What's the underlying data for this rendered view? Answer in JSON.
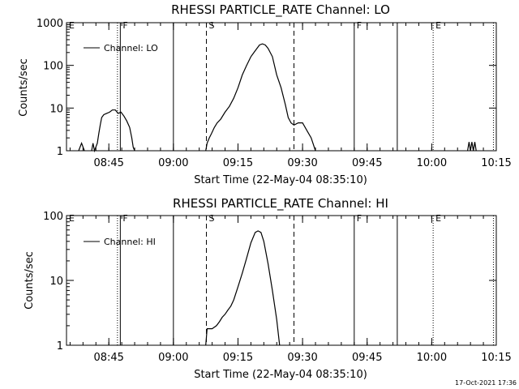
{
  "chart_data": [
    {
      "type": "line",
      "title": "RHESSI PARTICLE_RATE Channel: LO",
      "xlabel": "Start Time (22-May-04 08:35:10)",
      "ylabel": "Counts/sec",
      "y_scale": "log",
      "ylim": [
        1,
        1000
      ],
      "yticks": [
        {
          "value": 1,
          "label": "1"
        },
        {
          "value": 10,
          "label": "10"
        },
        {
          "value": 100,
          "label": "100"
        },
        {
          "value": 1000,
          "label": "1000"
        }
      ],
      "xlim": [
        "08:35:10",
        "10:15:00"
      ],
      "xticks": [
        {
          "time": "08:45",
          "label": "08:45"
        },
        {
          "time": "09:00",
          "label": "09:00"
        },
        {
          "time": "09:15",
          "label": "09:15"
        },
        {
          "time": "09:30",
          "label": "09:30"
        },
        {
          "time": "09:45",
          "label": "09:45"
        },
        {
          "time": "10:00",
          "label": "10:00"
        },
        {
          "time": "10:15",
          "label": "10:15"
        }
      ],
      "legend": {
        "position": "top-left",
        "entries": [
          "Channel: LO"
        ]
      },
      "grid": false,
      "markers": [
        {
          "time": "08:35:10",
          "style": "solid",
          "label": "E"
        },
        {
          "time": "08:47:00",
          "style": "dotted",
          "label": ""
        },
        {
          "time": "08:47:40",
          "style": "solid",
          "label": "F"
        },
        {
          "time": "09:00:00",
          "style": "solid",
          "label": ""
        },
        {
          "time": "09:07:40",
          "style": "dashed",
          "label": "S"
        },
        {
          "time": "09:28:00",
          "style": "dashed",
          "label": ""
        },
        {
          "time": "09:42:00",
          "style": "solid",
          "label": "F"
        },
        {
          "time": "09:52:00",
          "style": "solid",
          "label": ""
        },
        {
          "time": "10:00:20",
          "style": "dotted",
          "label": "E"
        },
        {
          "time": "10:14:20",
          "style": "dotted",
          "label": ""
        }
      ],
      "series": [
        {
          "name": "Channel: LO",
          "segments": [
            [
              [
                "08:38:00",
                1
              ],
              [
                "08:38:40",
                1.5
              ],
              [
                "08:39:20",
                1
              ]
            ],
            [
              [
                "08:41:00",
                1
              ],
              [
                "08:41:20",
                1.5
              ],
              [
                "08:41:40",
                1
              ],
              [
                "08:42:20",
                1.5
              ],
              [
                "08:42:40",
                2.5
              ],
              [
                "08:43:00",
                4
              ],
              [
                "08:43:20",
                6
              ],
              [
                "08:43:50",
                7
              ],
              [
                "08:44:30",
                7.5
              ],
              [
                "08:45:10",
                8
              ],
              [
                "08:45:50",
                9
              ],
              [
                "08:46:30",
                9
              ],
              [
                "08:47:10",
                7.5
              ],
              [
                "08:47:50",
                8
              ],
              [
                "08:48:30",
                6.5
              ],
              [
                "08:49:10",
                5
              ],
              [
                "08:49:50",
                3.5
              ],
              [
                "08:50:20",
                2
              ],
              [
                "08:50:40",
                1.2
              ],
              [
                "08:51:00",
                1
              ]
            ],
            [
              [
                "09:07:30",
                1
              ],
              [
                "09:07:50",
                1.5
              ],
              [
                "09:08:20",
                2
              ],
              [
                "09:08:50",
                2.5
              ],
              [
                "09:09:30",
                3.5
              ],
              [
                "09:10:10",
                4.5
              ],
              [
                "09:11:00",
                5.5
              ],
              [
                "09:12:00",
                8
              ],
              [
                "09:13:00",
                11
              ],
              [
                "09:14:00",
                17
              ],
              [
                "09:15:00",
                30
              ],
              [
                "09:16:00",
                60
              ],
              [
                "09:17:00",
                100
              ],
              [
                "09:18:00",
                160
              ],
              [
                "09:19:00",
                220
              ],
              [
                "09:20:00",
                300
              ],
              [
                "09:20:40",
                320
              ],
              [
                "09:21:20",
                300
              ],
              [
                "09:22:00",
                250
              ],
              [
                "09:23:00",
                160
              ],
              [
                "09:24:00",
                60
              ],
              [
                "09:25:00",
                30
              ],
              [
                "09:26:00",
                12
              ],
              [
                "09:26:40",
                6
              ],
              [
                "09:27:20",
                4.5
              ],
              [
                "09:28:00",
                4
              ],
              [
                "09:29:00",
                4.5
              ],
              [
                "09:30:00",
                4.5
              ],
              [
                "09:31:00",
                3
              ],
              [
                "09:32:00",
                2
              ],
              [
                "09:33:00",
                1
              ]
            ],
            [
              [
                "10:08:20",
                1
              ],
              [
                "10:08:40",
                1.6
              ],
              [
                "10:09:00",
                1
              ],
              [
                "10:09:20",
                1.6
              ],
              [
                "10:09:40",
                1
              ],
              [
                "10:10:00",
                1.6
              ],
              [
                "10:10:20",
                1
              ]
            ]
          ]
        }
      ]
    },
    {
      "type": "line",
      "title": "RHESSI PARTICLE_RATE Channel: HI",
      "xlabel": "Start Time (22-May-04 08:35:10)",
      "ylabel": "Counts/sec",
      "y_scale": "log",
      "ylim": [
        1,
        100
      ],
      "yticks": [
        {
          "value": 1,
          "label": "1"
        },
        {
          "value": 10,
          "label": "10"
        },
        {
          "value": 100,
          "label": "100"
        }
      ],
      "xlim": [
        "08:35:10",
        "10:15:00"
      ],
      "xticks": [
        {
          "time": "08:45",
          "label": "08:45"
        },
        {
          "time": "09:00",
          "label": "09:00"
        },
        {
          "time": "09:15",
          "label": "09:15"
        },
        {
          "time": "09:30",
          "label": "09:30"
        },
        {
          "time": "09:45",
          "label": "09:45"
        },
        {
          "time": "10:00",
          "label": "10:00"
        },
        {
          "time": "10:15",
          "label": "10:15"
        }
      ],
      "legend": {
        "position": "top-left",
        "entries": [
          "Channel: HI"
        ]
      },
      "grid": false,
      "markers": [
        {
          "time": "08:35:10",
          "style": "solid",
          "label": "E"
        },
        {
          "time": "08:47:00",
          "style": "dotted",
          "label": ""
        },
        {
          "time": "08:47:40",
          "style": "solid",
          "label": "F"
        },
        {
          "time": "09:00:00",
          "style": "solid",
          "label": ""
        },
        {
          "time": "09:07:40",
          "style": "dashed",
          "label": "S"
        },
        {
          "time": "09:28:00",
          "style": "dashed",
          "label": ""
        },
        {
          "time": "09:42:00",
          "style": "solid",
          "label": "F"
        },
        {
          "time": "09:52:00",
          "style": "solid",
          "label": ""
        },
        {
          "time": "10:00:20",
          "style": "dotted",
          "label": "E"
        },
        {
          "time": "10:14:20",
          "style": "dotted",
          "label": ""
        }
      ],
      "series": [
        {
          "name": "Channel: HI",
          "segments": [
            [
              [
                "09:07:30",
                1
              ],
              [
                "09:07:50",
                1.8
              ],
              [
                "09:09:00",
                1.8
              ],
              [
                "09:10:00",
                2
              ],
              [
                "09:10:40",
                2.3
              ],
              [
                "09:11:20",
                2.7
              ],
              [
                "09:12:00",
                3
              ],
              [
                "09:12:40",
                3.5
              ],
              [
                "09:13:20",
                4
              ],
              [
                "09:14:00",
                5
              ],
              [
                "09:15:00",
                8
              ],
              [
                "09:16:00",
                13
              ],
              [
                "09:17:00",
                22
              ],
              [
                "09:18:00",
                38
              ],
              [
                "09:19:00",
                55
              ],
              [
                "09:19:40",
                58
              ],
              [
                "09:20:20",
                55
              ],
              [
                "09:21:00",
                40
              ],
              [
                "09:22:00",
                18
              ],
              [
                "09:23:00",
                7
              ],
              [
                "09:24:00",
                2.5
              ],
              [
                "09:24:40",
                1
              ]
            ]
          ]
        }
      ]
    }
  ],
  "footer": {
    "timestamp": "17-Oct-2021 17:36"
  }
}
